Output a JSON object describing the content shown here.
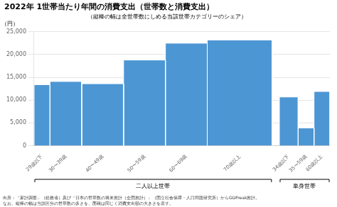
{
  "chart_data": {
    "type": "bar",
    "title": "2022年 1世帯当たり年間の消費支出（世帯数と消費支出）",
    "subtitle": "（縦棒の幅は全世帯数にしめる当該世帯カテゴリーのシェア）",
    "ylabel": "（円）",
    "footer": "出所：『家計調査』（総務省）及び『日本の世帯数の将来推計（全国推計）』（国立社会保障・人口問題研究所）からGDFreak推計。\nなお、縦棒の幅は当該区分の世帯数の多さを、面積は同じく消費支出額の大きさを表す。",
    "categories": [
      "29歳以下",
      "30〜39歳",
      "40〜49歳",
      "50〜59歳",
      "60〜69歳",
      "70歳以上",
      "34歳以下",
      "35〜59歳",
      "60歳以上"
    ],
    "values": [
      13400,
      14100,
      13600,
      18800,
      22500,
      23200,
      10700,
      3900,
      11900
    ],
    "widths": [
      0.055,
      0.11,
      0.145,
      0.145,
      0.145,
      0.225,
      0.065,
      0.055,
      0.055
    ],
    "groups": [
      "二人以上世帯",
      "二人以上世帯",
      "二人以上世帯",
      "二人以上世帯",
      "二人以上世帯",
      "二人以上世帯",
      "単身世帯",
      "単身世帯",
      "単身世帯"
    ],
    "color": "#4d96d4",
    "ylim": [
      0,
      25000
    ],
    "yticks": [
      0,
      {
        "value": 5000,
        "label": "5,000"
      },
      {
        "value": 10000,
        "label": "10,000"
      },
      {
        "value": 15000,
        "label": "15,000"
      },
      {
        "value": 20000,
        "label": "20,000"
      },
      {
        "value": 25000,
        "label": "25,000"
      }
    ],
    "grid": true
  }
}
